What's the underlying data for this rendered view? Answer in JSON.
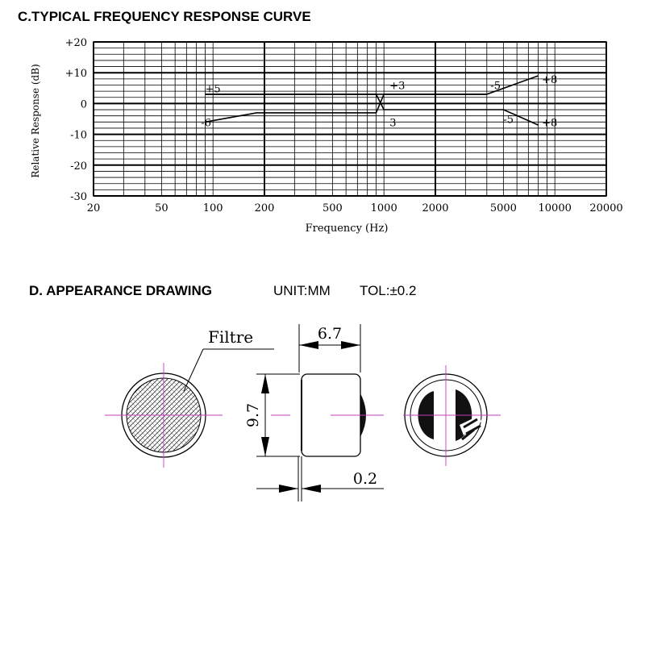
{
  "section_c": {
    "title": "C.TYPICAL FREQUENCY RESPONSE CURVE"
  },
  "chart_data": {
    "type": "line",
    "title": "",
    "xlabel": "Frequency (Hz)",
    "ylabel": "Relative Response (dB)",
    "x_scale": "log",
    "xlim": [
      20,
      20000
    ],
    "ylim": [
      -30,
      20
    ],
    "x_ticks": [
      20,
      50,
      100,
      200,
      500,
      1000,
      2000,
      5000,
      10000,
      20000
    ],
    "y_ticks": [
      20,
      10,
      0,
      -10,
      -20,
      -30
    ],
    "y_tick_labels": [
      "+20",
      "+10",
      "0",
      "-10",
      "-20",
      "-30"
    ],
    "grid": true,
    "series": [
      {
        "x": [
          90,
          4000,
          8000
        ],
        "y": [
          3,
          3,
          9
        ]
      },
      {
        "x": [
          90,
          180,
          900,
          1000,
          4000
        ],
        "y": [
          -6,
          -3,
          -3,
          3,
          3
        ]
      },
      {
        "x": [
          90,
          900,
          1000,
          5000,
          8000
        ],
        "y": [
          3,
          3,
          -2,
          -2,
          -7
        ]
      }
    ],
    "annotations": [
      {
        "text": "+5",
        "x": 90,
        "y": 5
      },
      {
        "text": "-6",
        "x": 85,
        "y": -6
      },
      {
        "text": "+3",
        "x": 1080,
        "y": 6
      },
      {
        "text": "3",
        "x": 1080,
        "y": -6
      },
      {
        "text": "-5",
        "x": 4200,
        "y": 6
      },
      {
        "text": "-5",
        "x": 5000,
        "y": -5
      },
      {
        "text": "+8",
        "x": 8400,
        "y": 8
      },
      {
        "text": "+8",
        "x": 8400,
        "y": -6
      }
    ]
  },
  "section_d": {
    "title": "D. APPEARANCE DRAWING",
    "unit": "UNIT:MM",
    "tolerance": "TOL:±0.2"
  },
  "drawing": {
    "filter_label": "Filtre",
    "dim_width": "6.7",
    "dim_height": "9.7",
    "dim_gap": "0.2"
  }
}
